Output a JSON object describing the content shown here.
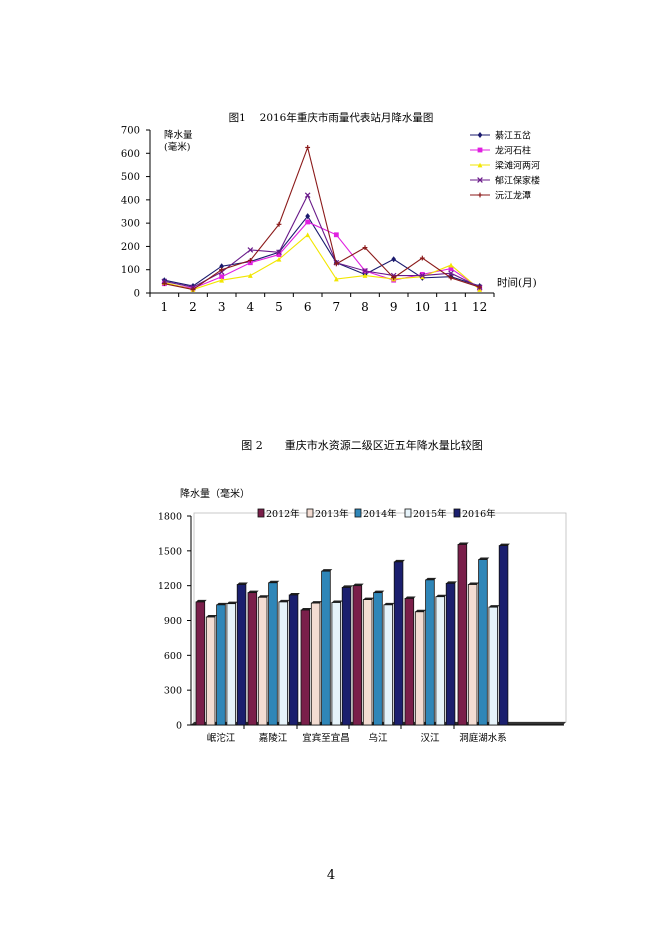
{
  "page_number": "4",
  "chart_data": [
    {
      "type": "line",
      "title": "图1　 2016年重庆市雨量代表站月降水量图",
      "ylabel_line1": "降水量",
      "ylabel_line2": "(毫米)",
      "xlabel": "时间(月)",
      "x": [
        1,
        2,
        3,
        4,
        5,
        6,
        7,
        8,
        9,
        10,
        11,
        12
      ],
      "x_tick_labels": [
        "1",
        "2",
        "3",
        "4",
        "5",
        "6",
        "7",
        "8",
        "9",
        "10",
        "11",
        "12"
      ],
      "y_tick_labels": [
        "0",
        "100",
        "200",
        "300",
        "400",
        "500",
        "600",
        "700"
      ],
      "ylim": [
        0,
        700
      ],
      "grid": false,
      "legend_position": "top-right",
      "series": [
        {
          "name": "綦江五岔",
          "color": "#1a1a6e",
          "marker": "diamond",
          "values": [
            55,
            30,
            115,
            135,
            175,
            330,
            130,
            80,
            145,
            65,
            70,
            30
          ]
        },
        {
          "name": "龙河石柱",
          "color": "#e020e0",
          "marker": "square",
          "values": [
            40,
            20,
            70,
            130,
            165,
            305,
            250,
            95,
            55,
            80,
            105,
            20
          ]
        },
        {
          "name": "梁滩河两河",
          "color": "#f2e600",
          "marker": "triangle",
          "values": [
            45,
            15,
            55,
            75,
            145,
            250,
            60,
            75,
            60,
            70,
            120,
            15
          ]
        },
        {
          "name": "郁江保家楼",
          "color": "#6a1b8a",
          "marker": "x",
          "values": [
            50,
            25,
            90,
            185,
            175,
            420,
            130,
            95,
            75,
            75,
            85,
            25
          ]
        },
        {
          "name": "沅江龙潭",
          "color": "#8b1a1a",
          "marker": "star",
          "values": [
            40,
            15,
            100,
            140,
            295,
            625,
            125,
            195,
            65,
            150,
            65,
            25
          ]
        }
      ]
    },
    {
      "type": "bar",
      "title": "图 2　　重庆市水资源二级区近五年降水量比较图",
      "ylabel": "降水量（毫米）",
      "ylim": [
        0,
        1800
      ],
      "y_tick_labels": [
        "0",
        "300",
        "600",
        "900",
        "1200",
        "1500",
        "1800"
      ],
      "categories": [
        "岷沱江",
        "嘉陵江",
        "宜宾至宜昌",
        "乌江",
        "汉江",
        "洞庭湖水系"
      ],
      "grid": false,
      "legend_position": "top",
      "series": [
        {
          "name": "2012年",
          "color": "#7a1f4a",
          "values": [
            1060,
            1140,
            990,
            1200,
            1090,
            1555
          ]
        },
        {
          "name": "2013年",
          "color": "#f3dcd2",
          "values": [
            930,
            1100,
            1050,
            1080,
            975,
            1210
          ]
        },
        {
          "name": "2014年",
          "color": "#2f86b8",
          "values": [
            1035,
            1225,
            1325,
            1140,
            1250,
            1425
          ]
        },
        {
          "name": "2015年",
          "color": "#e6f3fa",
          "values": [
            1045,
            1060,
            1055,
            1035,
            1105,
            1015
          ]
        },
        {
          "name": "2016年",
          "color": "#1b1f6e",
          "values": [
            1210,
            1120,
            1185,
            1405,
            1220,
            1545
          ]
        }
      ]
    }
  ]
}
